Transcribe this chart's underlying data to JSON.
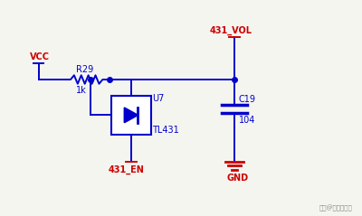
{
  "bg_color": "#f5f5f0",
  "wire_color": "#0000cc",
  "label_color_red": "#cc0000",
  "label_color_blue": "#0000cc",
  "component_fill": "#0000cc",
  "component_border": "#0000cc",
  "title": "",
  "vcc_label": "VCC",
  "r29_label": "R29",
  "r29_val": "1k",
  "u7_label": "U7",
  "u7_val": "TL431",
  "c19_label": "C19",
  "c19_val": "104",
  "gnd_label": "GND",
  "en_label": "431_EN",
  "vol_label": "431_VOL"
}
